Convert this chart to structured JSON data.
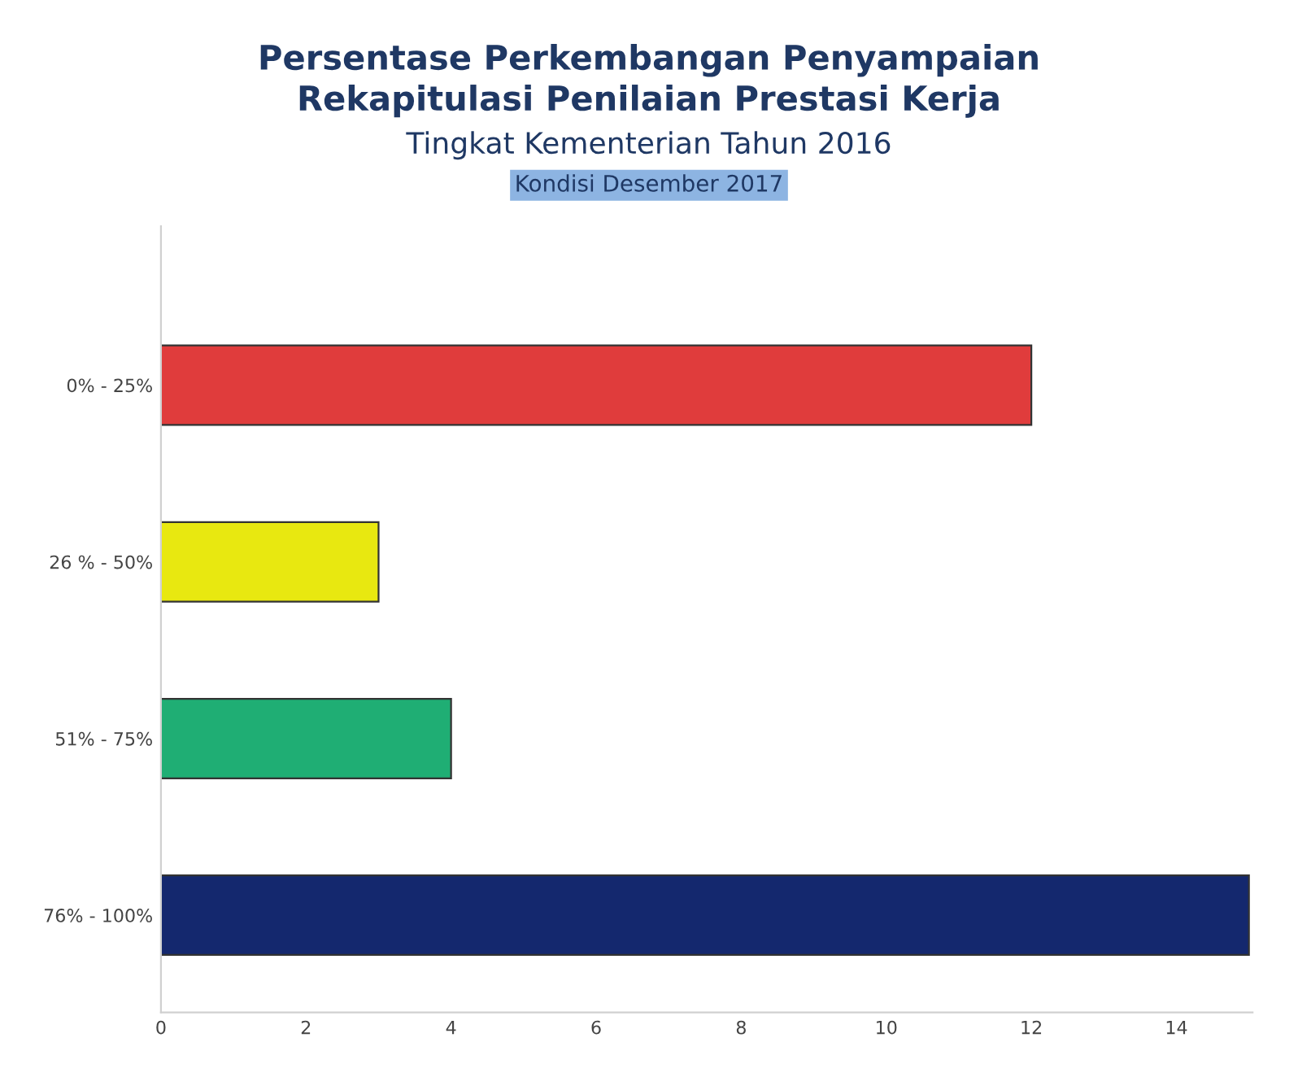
{
  "chart_data": {
    "type": "bar",
    "orientation": "horizontal",
    "title": "Persentase Perkembangan Penyampaian\nRekapitulasi Penilaian Prestasi Kerja",
    "subtitle": "Tingkat Kementerian Tahun 2016",
    "annotations": [
      "Kondisi Desember 2017"
    ],
    "categories": [
      "0% - 25%",
      "26 % - 50%",
      "51% - 75%",
      "76% - 100%"
    ],
    "values": [
      12,
      3,
      4,
      15
    ],
    "colors": [
      "#e03c3c",
      "#e8e810",
      "#1fae74",
      "#14286e"
    ],
    "xlim": [
      0,
      15.05
    ],
    "xticks": [
      0,
      2,
      4,
      6,
      8,
      10,
      12,
      14
    ],
    "grid": false,
    "legend": false
  }
}
